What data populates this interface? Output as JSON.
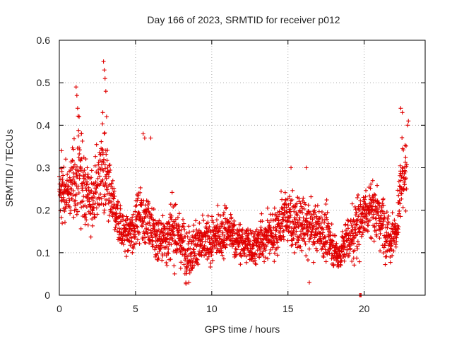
{
  "chart_data": {
    "type": "scatter",
    "title": "Day 166 of 2023, SRMTID for receiver p012",
    "xlabel": "GPS time / hours",
    "ylabel": "SRMTID / TECUs",
    "xlim": [
      0,
      24
    ],
    "ylim": [
      0,
      0.6
    ],
    "grid": true,
    "marker": "plus",
    "marker_color": "#e00000",
    "x_ticks": [
      0,
      5,
      10,
      15,
      20
    ],
    "x_tick_labels": [
      "0",
      "5",
      "10",
      "15",
      "20"
    ],
    "y_ticks": [
      0,
      0.1,
      0.2,
      0.3,
      0.4,
      0.5,
      0.6
    ],
    "y_tick_labels": [
      "0",
      "0.1",
      "0.2",
      "0.3",
      "0.4",
      "0.5",
      "0.6"
    ],
    "series": [
      {
        "name": "p012",
        "note": "envelope of dense scatter: time (h), center, spread (TECU)",
        "profile": [
          [
            0.0,
            0.25,
            0.06
          ],
          [
            0.5,
            0.23,
            0.05
          ],
          [
            1.0,
            0.27,
            0.08
          ],
          [
            1.3,
            0.3,
            0.1
          ],
          [
            1.7,
            0.24,
            0.07
          ],
          [
            2.2,
            0.22,
            0.06
          ],
          [
            2.8,
            0.3,
            0.1
          ],
          [
            3.2,
            0.24,
            0.08
          ],
          [
            3.6,
            0.2,
            0.05
          ],
          [
            4.2,
            0.15,
            0.04
          ],
          [
            4.6,
            0.14,
            0.04
          ],
          [
            5.3,
            0.2,
            0.07
          ],
          [
            5.8,
            0.17,
            0.06
          ],
          [
            6.4,
            0.13,
            0.05
          ],
          [
            7.0,
            0.14,
            0.05
          ],
          [
            7.6,
            0.15,
            0.06
          ],
          [
            8.4,
            0.1,
            0.05
          ],
          [
            9.0,
            0.12,
            0.05
          ],
          [
            9.6,
            0.12,
            0.05
          ],
          [
            10.5,
            0.14,
            0.05
          ],
          [
            11.0,
            0.16,
            0.05
          ],
          [
            11.6,
            0.13,
            0.04
          ],
          [
            12.3,
            0.12,
            0.04
          ],
          [
            13.0,
            0.12,
            0.04
          ],
          [
            13.6,
            0.14,
            0.05
          ],
          [
            14.2,
            0.15,
            0.05
          ],
          [
            14.8,
            0.19,
            0.06
          ],
          [
            15.4,
            0.17,
            0.06
          ],
          [
            16.0,
            0.16,
            0.06
          ],
          [
            16.6,
            0.16,
            0.06
          ],
          [
            17.2,
            0.15,
            0.05
          ],
          [
            17.8,
            0.13,
            0.05
          ],
          [
            18.3,
            0.09,
            0.03
          ],
          [
            18.8,
            0.13,
            0.05
          ],
          [
            19.4,
            0.15,
            0.06
          ],
          [
            20.0,
            0.2,
            0.06
          ],
          [
            20.5,
            0.21,
            0.06
          ],
          [
            21.2,
            0.17,
            0.06
          ],
          [
            21.7,
            0.14,
            0.05
          ],
          [
            22.1,
            0.15,
            0.06
          ],
          [
            22.4,
            0.25,
            0.08
          ],
          [
            22.8,
            0.28,
            0.08
          ]
        ],
        "sampling_interval_hours": 0.01,
        "highlights": [
          [
            0.15,
            0.34
          ],
          [
            1.1,
            0.49
          ],
          [
            1.15,
            0.47
          ],
          [
            1.2,
            0.44
          ],
          [
            1.3,
            0.42
          ],
          [
            1.45,
            0.38
          ],
          [
            2.9,
            0.55
          ],
          [
            2.95,
            0.53
          ],
          [
            3.0,
            0.51
          ],
          [
            3.05,
            0.48
          ],
          [
            2.85,
            0.43
          ],
          [
            3.1,
            0.42
          ],
          [
            5.5,
            0.38
          ],
          [
            5.6,
            0.37
          ],
          [
            6.0,
            0.37
          ],
          [
            15.2,
            0.3
          ],
          [
            16.2,
            0.3
          ],
          [
            22.4,
            0.44
          ],
          [
            22.5,
            0.43
          ],
          [
            22.85,
            0.4
          ],
          [
            22.9,
            0.41
          ],
          [
            8.5,
            0.03
          ],
          [
            16.4,
            0.03
          ],
          [
            19.7,
            0.0
          ],
          [
            19.75,
            0.0
          ],
          [
            19.8,
            0.0
          ]
        ]
      }
    ]
  }
}
